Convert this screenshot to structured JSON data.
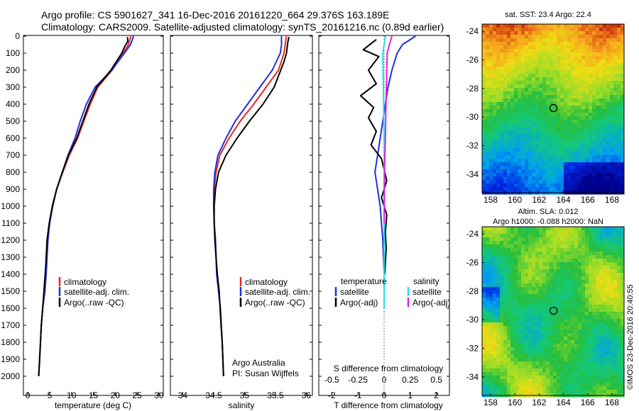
{
  "header": {
    "title_line1": "Argo profile: CS 5901627_341 16-Dec-2016 20161220_664 29.376S 163.189E",
    "title_line2": "Climatology: CARS2009. Satellite-adjusted climatology: synTS_20161216.nc (0.89d earlier)"
  },
  "colors": {
    "climatology": "#e8261e",
    "satellite": "#1f2fe0",
    "argo": "#000000",
    "salinity_satellite": "#22e0e8",
    "salinity_argo": "#e020e0"
  },
  "footer": {
    "argo_australia": "Argo Australia",
    "pi": "PI: Susan Wijffels",
    "imos_stamp": "©IMOS 23-Dec-2016 20:40:55"
  },
  "chart_data": [
    {
      "type": "line",
      "panel": "temperature",
      "xlabel": "temperature (deg C)",
      "xlim": [
        -1,
        31
      ],
      "xticks": [
        0,
        5,
        10,
        15,
        20,
        25,
        30
      ],
      "ylim": [
        2100,
        0
      ],
      "yticks": [
        0,
        100,
        200,
        300,
        400,
        500,
        600,
        700,
        800,
        900,
        1000,
        1100,
        1200,
        1300,
        1400,
        1500,
        1600,
        1700,
        1800,
        1900,
        2000
      ],
      "legend": [
        "climatology",
        "satellite-adj. clim.",
        "Argo(..raw -QC)"
      ],
      "series": [
        {
          "name": "climatology",
          "color_key": "climatology",
          "x": [
            23.6,
            23.0,
            21.8,
            19.3,
            16.0,
            14.3,
            12.8,
            11.4,
            9.5,
            8.0,
            6.6,
            5.7,
            5.0,
            4.6,
            4.2,
            3.9,
            3.4,
            3.1,
            2.9,
            2.7,
            2.5
          ],
          "y": [
            0,
            50,
            100,
            200,
            300,
            400,
            500,
            600,
            700,
            800,
            900,
            1000,
            1100,
            1200,
            1400,
            1500,
            1600,
            1700,
            1800,
            1900,
            2000
          ]
        },
        {
          "name": "satellite-adj. clim.",
          "color_key": "satellite",
          "x": [
            24.2,
            23.5,
            22.1,
            19.2,
            15.4,
            13.4,
            12.0,
            10.8,
            9.2,
            7.9,
            6.6,
            5.7,
            5.0,
            4.6,
            4.2,
            3.9,
            3.4,
            3.1,
            2.9,
            2.7,
            2.5
          ],
          "y": [
            0,
            50,
            100,
            200,
            300,
            400,
            500,
            600,
            700,
            800,
            900,
            1000,
            1100,
            1200,
            1400,
            1500,
            1600,
            1700,
            1800,
            1900,
            2000
          ]
        },
        {
          "name": "Argo(..raw -QC)",
          "color_key": "argo",
          "x": [
            22.8,
            22.9,
            22.2,
            21.5,
            19.0,
            15.8,
            14.0,
            12.6,
            11.2,
            9.3,
            7.9,
            6.6,
            5.6,
            4.9,
            4.4,
            4.1,
            3.7,
            3.4,
            3.1,
            2.9,
            2.7,
            2.5
          ],
          "y": [
            5,
            30,
            60,
            100,
            200,
            300,
            400,
            500,
            600,
            700,
            800,
            900,
            1000,
            1100,
            1200,
            1350,
            1500,
            1600,
            1700,
            1800,
            1900,
            2000
          ]
        }
      ]
    },
    {
      "type": "line",
      "panel": "salinity",
      "xlabel": "salinity",
      "xlim": [
        33.8,
        36.1
      ],
      "xticks": [
        34,
        34.5,
        35,
        35.5,
        36
      ],
      "ylim": [
        2100,
        0
      ],
      "legend": [
        "climatology",
        "satellite-adj. clim.",
        "Argo(..raw -QC)"
      ],
      "series": [
        {
          "name": "climatology",
          "color_key": "climatology",
          "x": [
            35.68,
            35.66,
            35.64,
            35.55,
            35.35,
            35.15,
            34.93,
            34.75,
            34.6,
            34.54,
            34.51,
            34.5,
            34.51,
            34.53,
            34.55,
            34.58,
            34.61,
            34.64,
            34.65,
            34.66
          ],
          "y": [
            0,
            50,
            100,
            200,
            300,
            400,
            500,
            600,
            700,
            800,
            900,
            1000,
            1100,
            1200,
            1400,
            1500,
            1600,
            1800,
            1900,
            2000
          ]
        },
        {
          "name": "satellite-adj. clim.",
          "color_key": "satellite",
          "x": [
            35.6,
            35.6,
            35.58,
            35.45,
            35.25,
            35.05,
            34.85,
            34.7,
            34.57,
            34.52,
            34.5,
            34.5,
            34.51,
            34.53,
            34.55,
            34.58,
            34.61,
            34.64,
            34.65,
            34.66
          ],
          "y": [
            0,
            50,
            100,
            200,
            300,
            400,
            500,
            600,
            700,
            800,
            900,
            1000,
            1100,
            1200,
            1400,
            1500,
            1600,
            1800,
            1900,
            2000
          ]
        },
        {
          "name": "Argo(..raw -QC)",
          "color_key": "argo",
          "x": [
            35.72,
            35.7,
            35.68,
            35.64,
            35.48,
            35.3,
            35.08,
            34.88,
            34.7,
            34.58,
            34.53,
            34.51,
            34.51,
            34.52,
            34.54,
            34.56,
            34.59,
            34.62,
            34.64,
            34.65,
            34.66
          ],
          "y": [
            5,
            40,
            100,
            150,
            300,
            400,
            500,
            600,
            700,
            800,
            900,
            1000,
            1100,
            1200,
            1300,
            1400,
            1500,
            1700,
            1800,
            1900,
            2000
          ]
        }
      ]
    },
    {
      "type": "line",
      "panel": "difference",
      "xlabel": "T difference from climatology",
      "x2label": "S difference from climatology",
      "xlim": [
        -2.5,
        2.5
      ],
      "xticks": [
        -2,
        -1,
        0,
        1,
        2
      ],
      "x2ticks": [
        -0.5,
        -0.25,
        0,
        0.25,
        0.5
      ],
      "ylim": [
        2100,
        0
      ],
      "legend_headers": [
        "temperature",
        "salinity"
      ],
      "legend": [
        "satellite",
        "Argo(-adj)",
        "satellite",
        "Argo(-adj)"
      ],
      "series": [
        {
          "name": "satellite",
          "variable": "temperature",
          "color_key": "satellite",
          "x": [
            1.2,
            0.7,
            0.5,
            0.3,
            0.15,
            0.05,
            -0.05,
            -0.15,
            -0.25,
            -0.35,
            -0.25,
            -0.15,
            -0.1,
            -0.05,
            0
          ],
          "y": [
            0,
            50,
            100,
            200,
            300,
            400,
            500,
            600,
            700,
            800,
            900,
            1000,
            1100,
            1200,
            1400
          ]
        },
        {
          "name": "Argo(-adj)",
          "variable": "temperature",
          "color_key": "argo",
          "x": [
            -0.3,
            -0.8,
            -0.2,
            -0.6,
            -0.3,
            -0.9,
            -0.4,
            -0.6,
            -0.3,
            -0.5,
            -0.1,
            0.1,
            -0.1,
            0.1,
            0.05,
            0.08,
            0.02
          ],
          "y": [
            20,
            80,
            120,
            200,
            280,
            350,
            420,
            480,
            560,
            640,
            720,
            850,
            950,
            1050,
            1150,
            1250,
            1400
          ]
        },
        {
          "name": "satellite",
          "variable": "salinity",
          "color_key": "salinity_satellite",
          "x": [
            0.05,
            0,
            -0.05,
            -0.04,
            -0.03,
            -0.02,
            -0.01,
            0,
            0,
            0,
            0
          ],
          "y": [
            0,
            50,
            100,
            200,
            300,
            400,
            500,
            600,
            800,
            1000,
            1600
          ]
        },
        {
          "name": "Argo(-adj)",
          "variable": "salinity",
          "color_key": "salinity_argo",
          "x": [
            0.3,
            0.2,
            0.12,
            0.1,
            0.09,
            0.07,
            0.06,
            0.05,
            0.03,
            0.02,
            0.01,
            0.01,
            0
          ],
          "y": [
            0,
            50,
            100,
            200,
            300,
            400,
            500,
            600,
            700,
            800,
            900,
            1000,
            1100
          ]
        }
      ]
    },
    {
      "type": "heatmap",
      "panel": "sst_map",
      "title": "sat. SST: 23.4  Argo: 22.4",
      "xticks": [
        158,
        160,
        162,
        164,
        166,
        168
      ],
      "yticks": [
        -24,
        -26,
        -28,
        -30,
        -32,
        -34
      ],
      "xlim": [
        157.3,
        169.0
      ],
      "ylim": [
        -35.3,
        -23.5
      ],
      "argo_position": {
        "lon": 163.189,
        "lat": -29.376
      }
    },
    {
      "type": "heatmap",
      "panel": "sla_map",
      "title_line1": "Altim. SLA: 0.012",
      "title_line2": "Argo h1000: -0.088  h2000: NaN",
      "xticks": [
        158,
        160,
        162,
        164,
        166,
        168
      ],
      "yticks": [
        -24,
        -26,
        -28,
        -30,
        -32,
        -34
      ],
      "xlim": [
        157.3,
        169.0
      ],
      "ylim": [
        -35.3,
        -23.5
      ],
      "argo_position": {
        "lon": 163.189,
        "lat": -29.376
      }
    }
  ]
}
